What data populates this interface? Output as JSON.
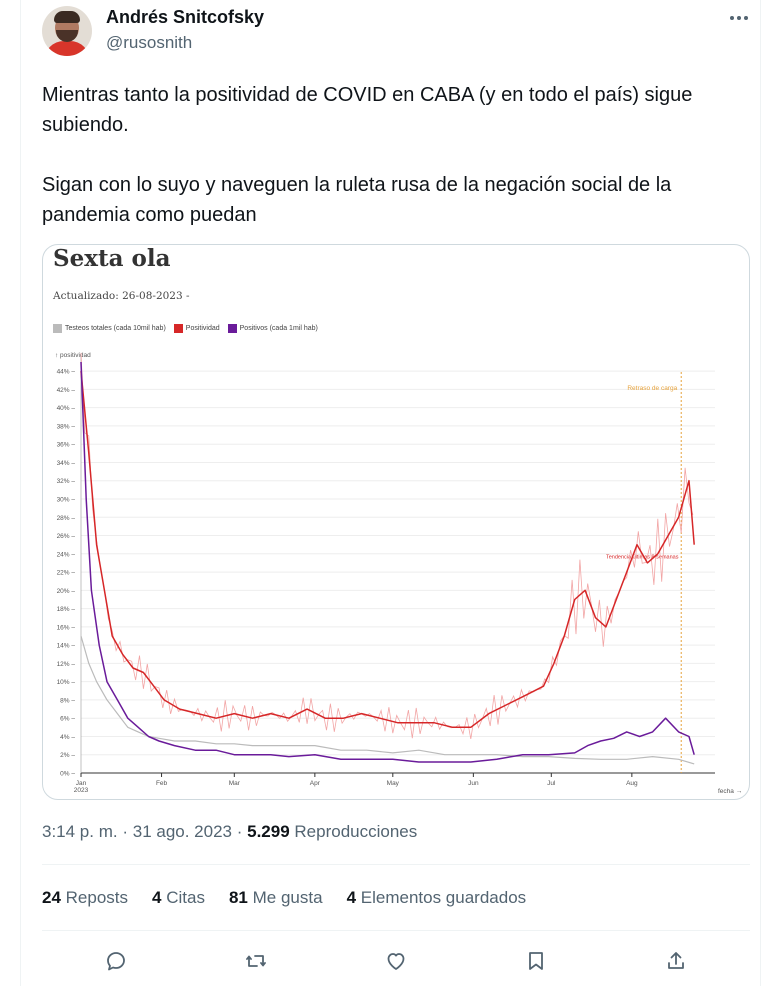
{
  "user": {
    "name": "Andrés Snitcofsky",
    "handle": "@rusosnith"
  },
  "tweet": {
    "paragraphs": [
      "Mientras tanto la positividad de COVID en CABA (y en todo el país) sigue subiendo.",
      "Sigan con lo suyo y naveguen la ruleta rusa de la negación social de la pandemia como puedan"
    ],
    "time": "3:14 p. m.",
    "date": "31 ago. 2023",
    "views_count": "5.299",
    "views_label": "Reproducciones"
  },
  "stats": {
    "reposts_count": "24",
    "reposts_label": "Reposts",
    "quotes_count": "4",
    "quotes_label": "Citas",
    "likes_count": "81",
    "likes_label": "Me gusta",
    "bookmarks_count": "4",
    "bookmarks_label": "Elementos guardados"
  },
  "actions": [
    "reply-icon",
    "repost-icon",
    "like-icon",
    "bookmark-icon",
    "share-icon"
  ],
  "colors": {
    "text_primary": "#0f1419",
    "text_secondary": "#536471",
    "positividad": "#d62728",
    "positivos": "#6a1b9a",
    "testeos": "#bbbbbb",
    "retraso": "#e6a23c"
  },
  "chart_data": {
    "type": "line",
    "title": "Sexta ola",
    "subtitle": "Actualizado: 26-08-2023 -",
    "ylabel": "↑ positividad",
    "xlabel": "fecha →",
    "ylim": [
      0,
      45
    ],
    "y_ticks": [
      "0%",
      "2%",
      "4%",
      "6%",
      "8%",
      "10%",
      "12%",
      "14%",
      "16%",
      "18%",
      "20%",
      "22%",
      "24%",
      "26%",
      "28%",
      "30%",
      "32%",
      "34%",
      "36%",
      "38%",
      "40%",
      "42%",
      "44%"
    ],
    "x_ticks": [
      {
        "label": "Jan",
        "sub": "2023",
        "day": 0
      },
      {
        "label": "Feb",
        "day": 31
      },
      {
        "label": "Mar",
        "day": 59
      },
      {
        "label": "Apr",
        "day": 90
      },
      {
        "label": "May",
        "day": 120
      },
      {
        "label": "Jun",
        "day": 151
      },
      {
        "label": "Jul",
        "day": 181
      },
      {
        "label": "Aug",
        "day": 212
      }
    ],
    "x_max_day": 244,
    "legend": [
      "Testeos totales (cada 10mil hab)",
      "Positividad",
      "Positivos (cada 1mil hab)"
    ],
    "annotation_delay": {
      "label": "Retraso de carga",
      "day": 231
    },
    "annotation_trend": "Tendencia últimas 8 semanas",
    "series": [
      {
        "name": "Positividad",
        "days": [
          0,
          3,
          6,
          9,
          12,
          16,
          20,
          24,
          28,
          32,
          38,
          45,
          52,
          59,
          66,
          73,
          80,
          87,
          94,
          101,
          108,
          115,
          122,
          129,
          136,
          143,
          150,
          157,
          164,
          171,
          178,
          182,
          186,
          190,
          194,
          198,
          202,
          206,
          210,
          214,
          218,
          222,
          226,
          230,
          234,
          236
        ],
        "values": [
          44,
          35,
          25,
          20,
          15,
          13,
          11.5,
          11,
          9.5,
          8,
          7,
          6.5,
          6,
          6.5,
          6,
          6.5,
          6,
          7,
          6,
          6,
          6.5,
          6,
          5.5,
          5.5,
          5.5,
          5,
          5,
          6.5,
          7.5,
          8.5,
          9.5,
          12,
          15,
          19,
          20,
          17,
          16,
          19,
          22,
          25,
          23,
          24,
          26,
          28,
          32,
          25
        ]
      },
      {
        "name": "Positivos (cada 1mil hab)",
        "days": [
          0,
          2,
          4,
          7,
          10,
          14,
          18,
          22,
          26,
          30,
          36,
          44,
          52,
          59,
          66,
          73,
          80,
          90,
          100,
          110,
          120,
          130,
          140,
          150,
          160,
          170,
          180,
          190,
          195,
          200,
          205,
          210,
          215,
          220,
          225,
          230,
          234,
          236
        ],
        "values": [
          45,
          30,
          20,
          14,
          10,
          8,
          6,
          5,
          4,
          3.5,
          3,
          2.5,
          2.5,
          2,
          2,
          2,
          1.8,
          2,
          1.5,
          1.5,
          1.5,
          1.2,
          1.2,
          1.2,
          1.5,
          2,
          2,
          2.2,
          3,
          3.5,
          3.8,
          4.5,
          4,
          4.5,
          6,
          4.5,
          4,
          2
        ]
      },
      {
        "name": "Testeos totales (cada 10mil hab)",
        "days": [
          0,
          3,
          6,
          10,
          14,
          18,
          22,
          26,
          30,
          36,
          44,
          52,
          59,
          66,
          73,
          80,
          90,
          100,
          110,
          120,
          130,
          140,
          150,
          160,
          170,
          180,
          190,
          200,
          210,
          220,
          230,
          236
        ],
        "values": [
          15,
          12,
          10,
          8,
          6.5,
          5,
          4.5,
          4,
          3.8,
          3.5,
          3.5,
          3.2,
          3.2,
          3,
          3,
          3,
          3,
          2.5,
          2.5,
          2.2,
          2.5,
          2,
          2,
          2,
          1.8,
          1.8,
          1.6,
          1.5,
          1.5,
          1.8,
          1.5,
          1
        ]
      }
    ]
  }
}
